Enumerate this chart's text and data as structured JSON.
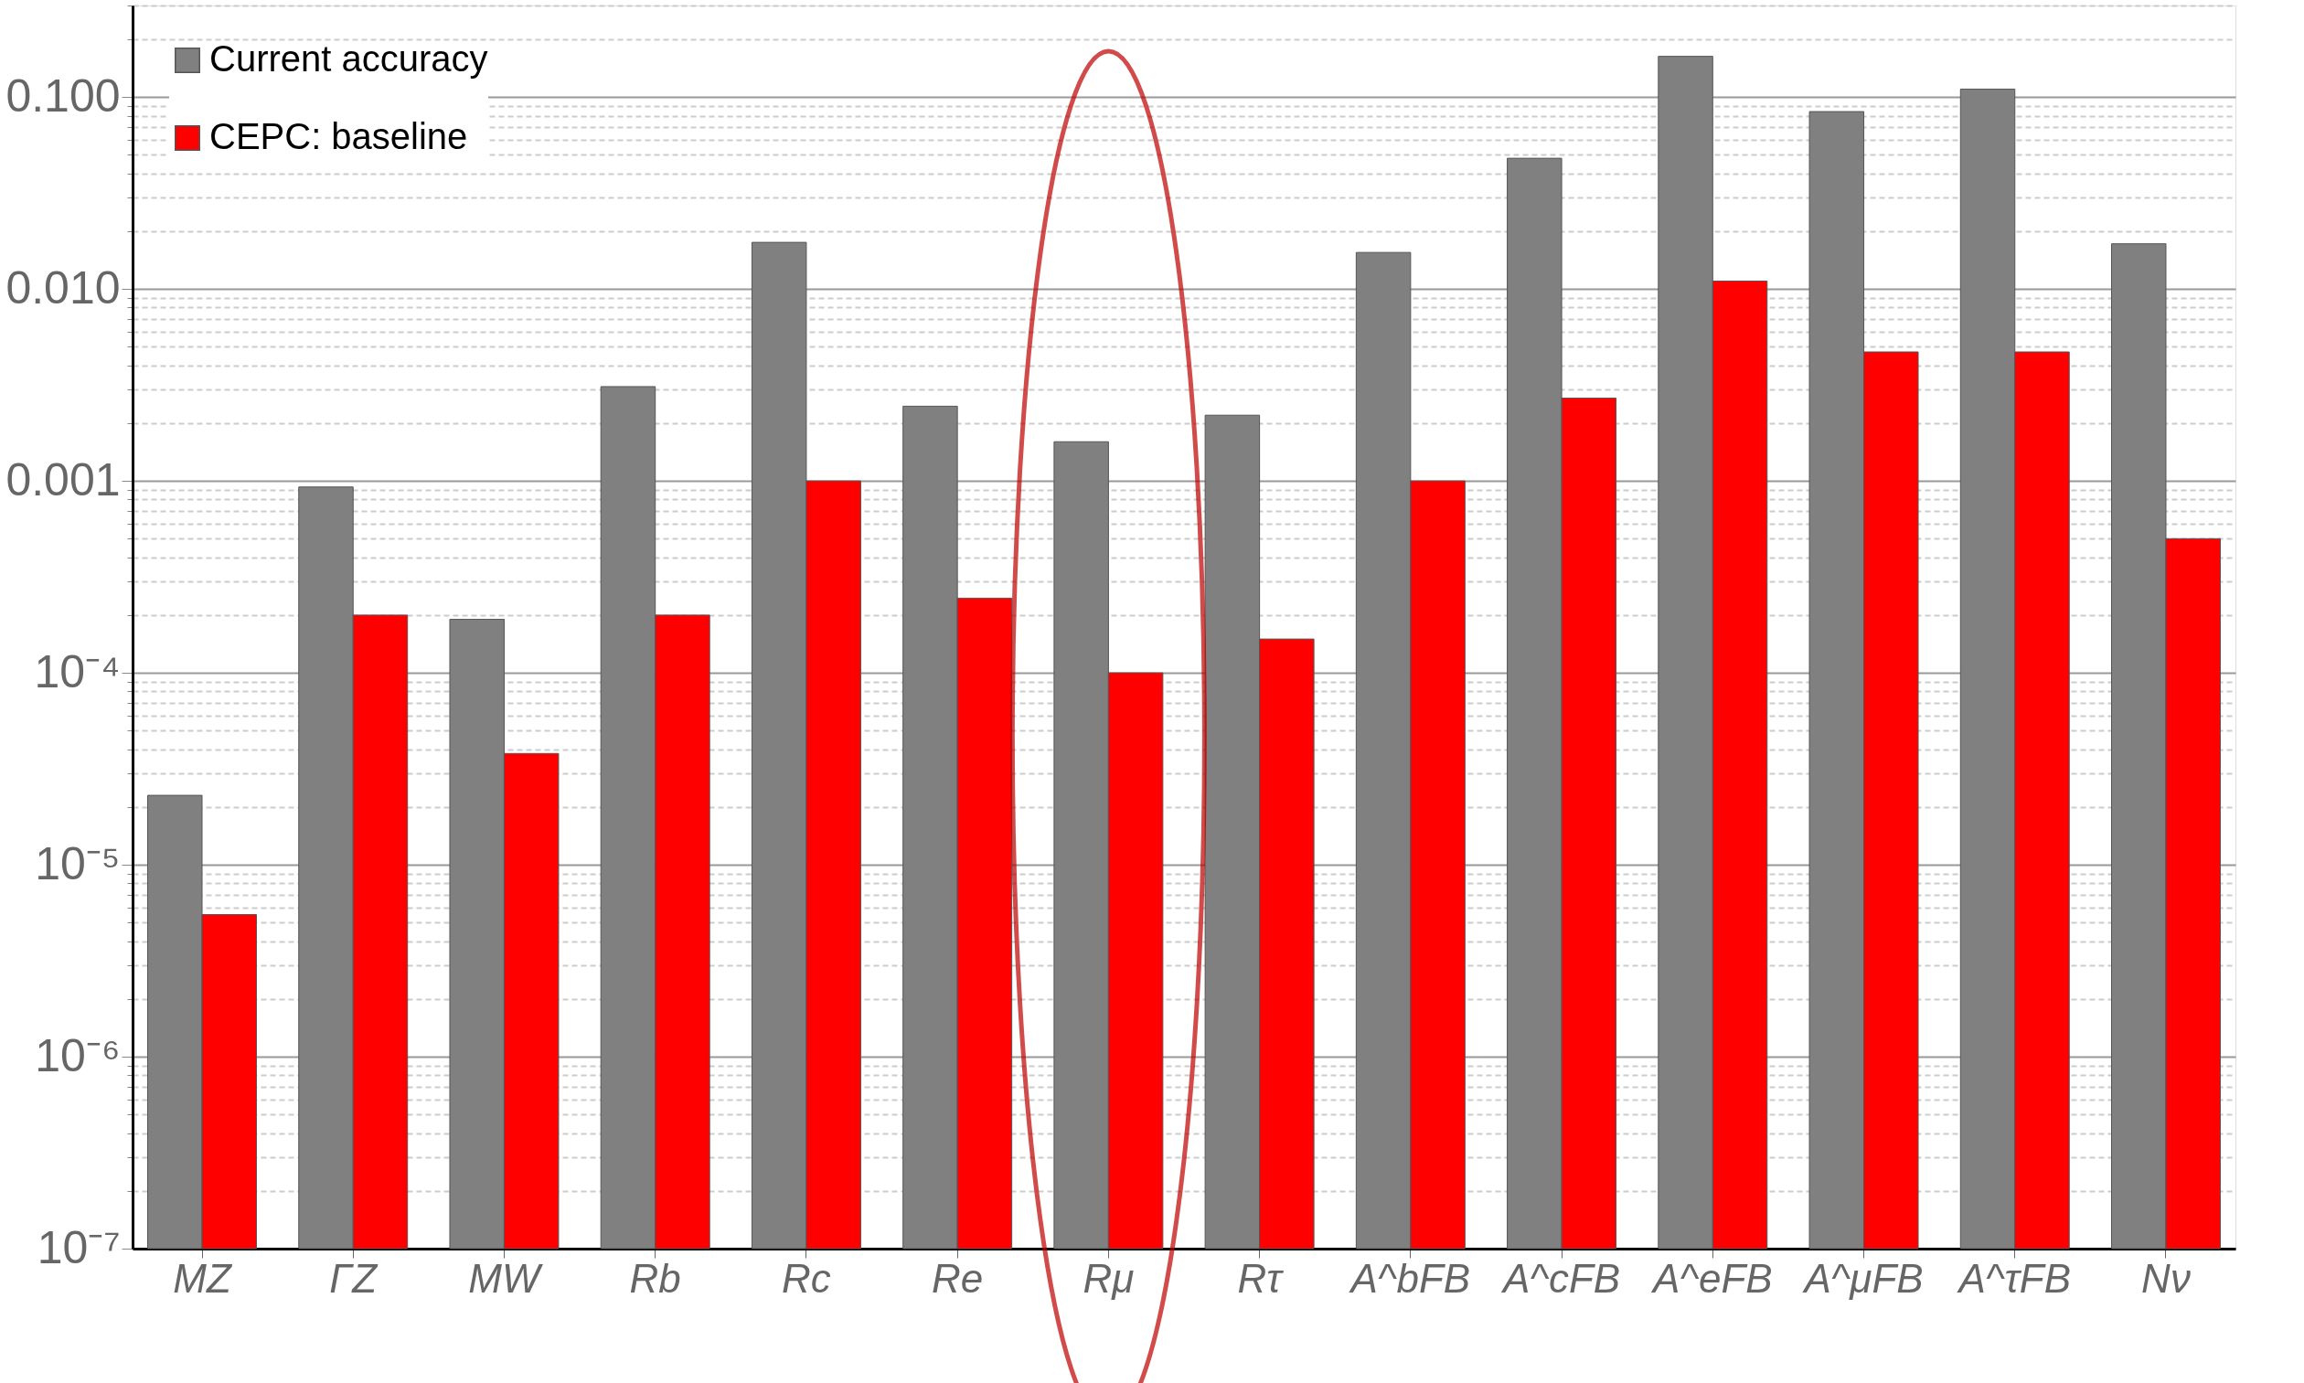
{
  "chart_data": {
    "type": "bar",
    "log": true,
    "legend": "top left",
    "grid": "y",
    "categories": [
      "MZ",
      "ΓZ",
      "MW",
      "Rb",
      "Rc",
      "Re",
      "Rμ",
      "Rτ",
      "A^bFB",
      "A^cFB",
      "A^eFB",
      "A^μFB",
      "A^τFB",
      "Nν"
    ],
    "series": [
      {
        "name": "Current accuracy",
        "color": "#808080",
        "values": [
          2.3e-05,
          0.00093,
          0.00019,
          0.0031,
          0.0175,
          0.00245,
          0.0016,
          0.0022,
          0.0155,
          0.048,
          0.163,
          0.084,
          0.11,
          0.0172
        ]
      },
      {
        "name": "CEPC: baseline",
        "color": "#ff0000",
        "values": [
          5.5e-06,
          0.0002,
          3.8e-05,
          0.0002,
          0.001,
          0.000245,
          0.0001,
          0.00015,
          0.001,
          0.0027,
          0.011,
          0.0047,
          0.0047,
          0.0005
        ]
      }
    ],
    "ylim": [
      1e-07,
      0.3
    ],
    "yticks": [
      {
        "value": 1e-07,
        "label": "10⁻⁷"
      },
      {
        "value": 2e-07,
        "label": null
      },
      {
        "value": 3e-07,
        "label": null
      },
      {
        "value": 4e-07,
        "label": null
      },
      {
        "value": 5e-07,
        "label": null
      },
      {
        "value": 6e-07,
        "label": null
      },
      {
        "value": 7e-07,
        "label": null
      },
      {
        "value": 8e-07,
        "label": null
      },
      {
        "value": 9e-07,
        "label": null
      },
      {
        "value": 1e-06,
        "label": "10⁻⁶"
      },
      {
        "value": 2e-06,
        "label": null
      },
      {
        "value": 3e-06,
        "label": null
      },
      {
        "value": 4e-06,
        "label": null
      },
      {
        "value": 5e-06,
        "label": null
      },
      {
        "value": 6e-06,
        "label": null
      },
      {
        "value": 7e-06,
        "label": null
      },
      {
        "value": 8e-06,
        "label": null
      },
      {
        "value": 9e-06,
        "label": null
      },
      {
        "value": 1e-05,
        "label": "10⁻⁵"
      },
      {
        "value": 2e-05,
        "label": null
      },
      {
        "value": 3e-05,
        "label": null
      },
      {
        "value": 4e-05,
        "label": null
      },
      {
        "value": 5e-05,
        "label": null
      },
      {
        "value": 6e-05,
        "label": null
      },
      {
        "value": 7e-05,
        "label": null
      },
      {
        "value": 8e-05,
        "label": null
      },
      {
        "value": 9e-05,
        "label": null
      },
      {
        "value": 0.0001,
        "label": "10⁻⁴"
      },
      {
        "value": 0.0002,
        "label": null
      },
      {
        "value": 0.0003,
        "label": null
      },
      {
        "value": 0.0004,
        "label": null
      },
      {
        "value": 0.0005,
        "label": null
      },
      {
        "value": 0.0006,
        "label": null
      },
      {
        "value": 0.0007,
        "label": null
      },
      {
        "value": 0.0008,
        "label": null
      },
      {
        "value": 0.0009,
        "label": null
      },
      {
        "value": 0.001,
        "label": "0.001"
      },
      {
        "value": 0.002,
        "label": null
      },
      {
        "value": 0.003,
        "label": null
      },
      {
        "value": 0.004,
        "label": null
      },
      {
        "value": 0.005,
        "label": null
      },
      {
        "value": 0.006,
        "label": null
      },
      {
        "value": 0.007,
        "label": null
      },
      {
        "value": 0.008,
        "label": null
      },
      {
        "value": 0.009,
        "label": null
      },
      {
        "value": 0.01,
        "label": "0.010"
      },
      {
        "value": 0.02,
        "label": null
      },
      {
        "value": 0.03,
        "label": null
      },
      {
        "value": 0.04,
        "label": null
      },
      {
        "value": 0.05,
        "label": null
      },
      {
        "value": 0.06,
        "label": null
      },
      {
        "value": 0.07,
        "label": null
      },
      {
        "value": 0.08,
        "label": null
      },
      {
        "value": 0.09,
        "label": null
      },
      {
        "value": 0.1,
        "label": "0.100"
      },
      {
        "value": 0.2,
        "label": null
      },
      {
        "value": 0.3,
        "label": null
      }
    ]
  }
}
